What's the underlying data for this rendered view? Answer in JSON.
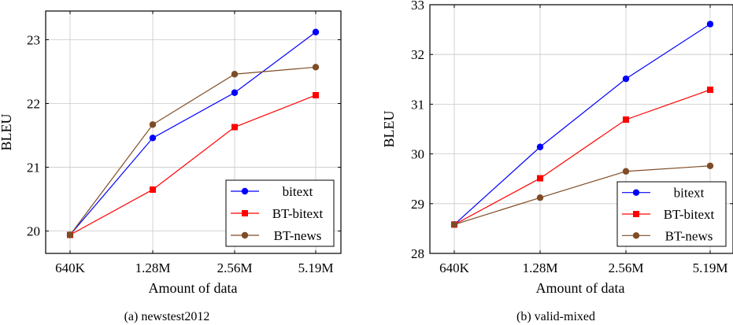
{
  "chart_data": [
    {
      "type": "line",
      "caption": "(a) newstest2012",
      "categories": [
        "640K",
        "1.28M",
        "2.56M",
        "5.19M"
      ],
      "xlabel": "Amount of data",
      "ylabel": "BLEU",
      "ylim": [
        19.65,
        23.45
      ],
      "yticks": [
        20,
        21,
        22,
        23
      ],
      "grid": true,
      "legend_position": "bottom-right",
      "series": [
        {
          "name": "bitext",
          "color": "#0000ff",
          "marker": "circle",
          "values": [
            19.94,
            21.46,
            22.17,
            23.12
          ]
        },
        {
          "name": "BT-bitext",
          "color": "#ff0000",
          "marker": "square",
          "values": [
            19.94,
            20.65,
            21.63,
            22.13
          ]
        },
        {
          "name": "BT-news",
          "color": "#7f4c26",
          "marker": "circle",
          "values": [
            19.94,
            21.67,
            22.46,
            22.57
          ]
        }
      ]
    },
    {
      "type": "line",
      "caption": "(b) valid-mixed",
      "categories": [
        "640K",
        "1.28M",
        "2.56M",
        "5.19M"
      ],
      "xlabel": "Amount of data",
      "ylabel": "BLEU",
      "ylim": [
        28,
        33
      ],
      "yticks": [
        28,
        29,
        30,
        31,
        32,
        33
      ],
      "grid": true,
      "legend_position": "bottom-right",
      "series": [
        {
          "name": "bitext",
          "color": "#0000ff",
          "marker": "circle",
          "values": [
            28.58,
            30.14,
            31.51,
            32.61
          ]
        },
        {
          "name": "BT-bitext",
          "color": "#ff0000",
          "marker": "square",
          "values": [
            28.58,
            29.51,
            30.69,
            31.29
          ]
        },
        {
          "name": "BT-news",
          "color": "#7f4c26",
          "marker": "circle",
          "values": [
            28.58,
            29.12,
            29.65,
            29.76
          ]
        }
      ]
    }
  ]
}
